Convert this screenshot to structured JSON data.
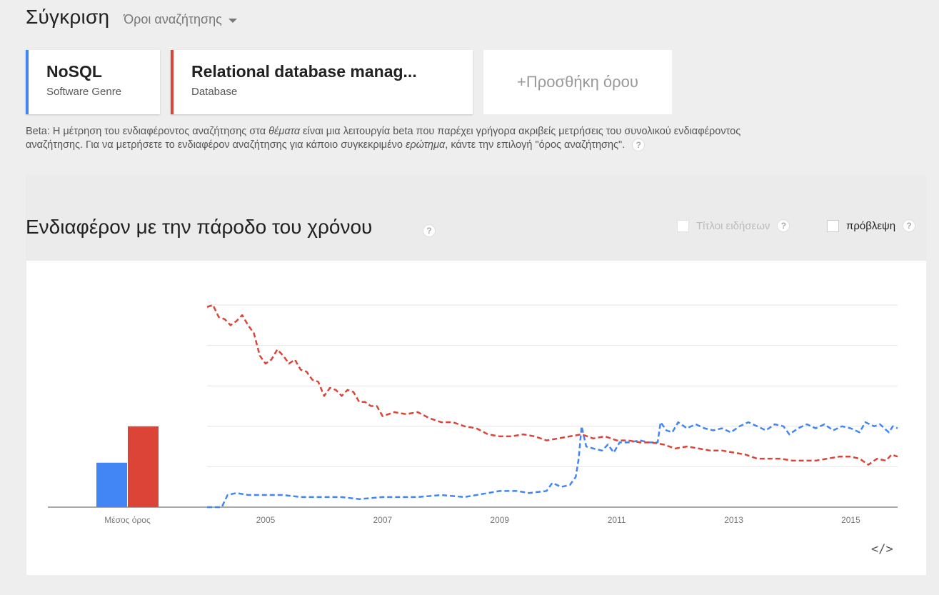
{
  "header": {
    "title": "Σύγκριση",
    "dropdown_label": "Όροι αναζήτησης"
  },
  "terms": [
    {
      "name": "NoSQL",
      "sub": "Software Genre",
      "color": "#4285f4"
    },
    {
      "name": "Relational database manag...",
      "sub": "Database",
      "color": "#db4437"
    }
  ],
  "add_term_label": "+Προσθήκη όρου",
  "beta_note": {
    "part1": "Beta: Η μέτρηση του ενδιαφέροντος αναζήτησης στα ",
    "em1": "θέματα",
    "part2": " είναι μια λειτουργία beta που παρέχει γρήγορα ακριβείς μετρήσεις του συνολικού ενδιαφέροντος αναζήτησης. Για να μετρήσετε το ενδιαφέρον αναζήτησης για κάποιο συγκεκριμένο ",
    "em2": "ερώτημα",
    "part3": ", κάντε την επιλογή \"όρος αναζήτησης\"."
  },
  "help_glyph": "?",
  "section": {
    "title": "Ενδιαφέρον με την πάροδο του χρόνου",
    "news_label": "Τίτλοι ειδήσεων",
    "forecast_label": "πρόβλεψη"
  },
  "embed_glyph": "</>",
  "chart_data": {
    "type": "line",
    "average_label": "Μέσος όρος",
    "averages": [
      {
        "name": "NoSQL",
        "value": 22,
        "color": "#4285f4"
      },
      {
        "name": "Relational database manag...",
        "value": 40,
        "color": "#db4437"
      }
    ],
    "x_ticks": [
      "2005",
      "2007",
      "2009",
      "2011",
      "2013",
      "2015"
    ],
    "xlim": [
      2004.0,
      2015.8
    ],
    "ylim": [
      0,
      100
    ],
    "grid": true,
    "series": [
      {
        "name": "NoSQL",
        "color": "#4285f4",
        "dash": true,
        "points": [
          [
            2004.0,
            0
          ],
          [
            2004.25,
            0
          ],
          [
            2004.35,
            6
          ],
          [
            2004.5,
            7
          ],
          [
            2004.7,
            6
          ],
          [
            2005.0,
            6
          ],
          [
            2005.3,
            6
          ],
          [
            2005.6,
            5
          ],
          [
            2006.0,
            5
          ],
          [
            2006.3,
            5
          ],
          [
            2006.6,
            4
          ],
          [
            2007.0,
            5
          ],
          [
            2007.3,
            5
          ],
          [
            2007.6,
            5
          ],
          [
            2008.0,
            6
          ],
          [
            2008.4,
            5
          ],
          [
            2008.8,
            7
          ],
          [
            2009.0,
            8
          ],
          [
            2009.3,
            8
          ],
          [
            2009.5,
            7
          ],
          [
            2009.8,
            8
          ],
          [
            2009.9,
            12
          ],
          [
            2010.05,
            10
          ],
          [
            2010.2,
            11
          ],
          [
            2010.3,
            15
          ],
          [
            2010.35,
            24
          ],
          [
            2010.4,
            40
          ],
          [
            2010.48,
            30
          ],
          [
            2010.6,
            29
          ],
          [
            2010.75,
            28
          ],
          [
            2010.85,
            31
          ],
          [
            2010.95,
            27
          ],
          [
            2011.05,
            32
          ],
          [
            2011.2,
            32
          ],
          [
            2011.4,
            33
          ],
          [
            2011.55,
            32
          ],
          [
            2011.7,
            32
          ],
          [
            2011.75,
            42
          ],
          [
            2011.85,
            38
          ],
          [
            2011.95,
            37
          ],
          [
            2012.05,
            42
          ],
          [
            2012.2,
            39
          ],
          [
            2012.35,
            41
          ],
          [
            2012.5,
            39
          ],
          [
            2012.65,
            38
          ],
          [
            2012.8,
            39
          ],
          [
            2012.95,
            37
          ],
          [
            2013.1,
            40
          ],
          [
            2013.25,
            42
          ],
          [
            2013.4,
            40
          ],
          [
            2013.55,
            38
          ],
          [
            2013.7,
            41
          ],
          [
            2013.85,
            40
          ],
          [
            2013.95,
            36
          ],
          [
            2014.1,
            39
          ],
          [
            2014.25,
            41
          ],
          [
            2014.4,
            39
          ],
          [
            2014.55,
            41
          ],
          [
            2014.7,
            38
          ],
          [
            2014.85,
            40
          ],
          [
            2015.0,
            39
          ],
          [
            2015.15,
            37
          ],
          [
            2015.25,
            42
          ],
          [
            2015.4,
            40
          ],
          [
            2015.5,
            41
          ],
          [
            2015.65,
            37
          ],
          [
            2015.72,
            40
          ],
          [
            2015.8,
            39
          ]
        ]
      },
      {
        "name": "Relational database manag...",
        "color": "#db4437",
        "dash": true,
        "points": [
          [
            2004.0,
            99
          ],
          [
            2004.1,
            100
          ],
          [
            2004.2,
            94
          ],
          [
            2004.3,
            93
          ],
          [
            2004.4,
            90
          ],
          [
            2004.5,
            92
          ],
          [
            2004.6,
            95
          ],
          [
            2004.7,
            90
          ],
          [
            2004.8,
            86
          ],
          [
            2004.9,
            75
          ],
          [
            2005.0,
            71
          ],
          [
            2005.1,
            73
          ],
          [
            2005.2,
            78
          ],
          [
            2005.3,
            75
          ],
          [
            2005.4,
            71
          ],
          [
            2005.5,
            73
          ],
          [
            2005.6,
            68
          ],
          [
            2005.7,
            67
          ],
          [
            2005.8,
            63
          ],
          [
            2005.9,
            62
          ],
          [
            2006.0,
            55
          ],
          [
            2006.1,
            59
          ],
          [
            2006.2,
            58
          ],
          [
            2006.3,
            55
          ],
          [
            2006.4,
            58
          ],
          [
            2006.5,
            57
          ],
          [
            2006.6,
            52
          ],
          [
            2006.7,
            52
          ],
          [
            2006.8,
            50
          ],
          [
            2006.9,
            50
          ],
          [
            2007.0,
            45
          ],
          [
            2007.2,
            47
          ],
          [
            2007.4,
            46
          ],
          [
            2007.6,
            47
          ],
          [
            2007.8,
            44
          ],
          [
            2008.0,
            42
          ],
          [
            2008.2,
            42
          ],
          [
            2008.4,
            40
          ],
          [
            2008.6,
            39
          ],
          [
            2008.8,
            36
          ],
          [
            2009.0,
            35
          ],
          [
            2009.2,
            35
          ],
          [
            2009.4,
            36
          ],
          [
            2009.6,
            35
          ],
          [
            2009.8,
            33
          ],
          [
            2010.0,
            34
          ],
          [
            2010.2,
            35
          ],
          [
            2010.4,
            36
          ],
          [
            2010.6,
            34
          ],
          [
            2010.8,
            35
          ],
          [
            2011.0,
            33
          ],
          [
            2011.2,
            33
          ],
          [
            2011.4,
            32
          ],
          [
            2011.6,
            32
          ],
          [
            2011.8,
            31
          ],
          [
            2012.0,
            29
          ],
          [
            2012.2,
            30
          ],
          [
            2012.4,
            29
          ],
          [
            2012.6,
            28
          ],
          [
            2012.8,
            28
          ],
          [
            2013.0,
            27
          ],
          [
            2013.2,
            26
          ],
          [
            2013.4,
            24
          ],
          [
            2013.6,
            24
          ],
          [
            2013.8,
            24
          ],
          [
            2014.0,
            23
          ],
          [
            2014.2,
            23
          ],
          [
            2014.4,
            23
          ],
          [
            2014.6,
            24
          ],
          [
            2014.8,
            25
          ],
          [
            2015.0,
            25
          ],
          [
            2015.15,
            24
          ],
          [
            2015.3,
            21
          ],
          [
            2015.45,
            24
          ],
          [
            2015.6,
            23
          ],
          [
            2015.7,
            26
          ],
          [
            2015.8,
            25
          ]
        ]
      }
    ]
  }
}
